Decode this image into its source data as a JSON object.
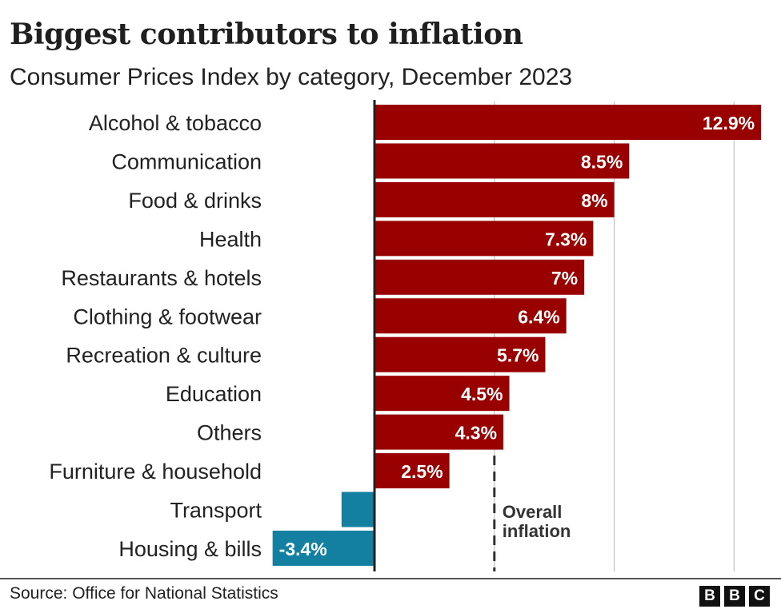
{
  "chart_data": {
    "type": "bar",
    "orientation": "horizontal",
    "title": "Biggest contributors to inflation",
    "subtitle": "Consumer Prices Index by category, December 2023",
    "categories": [
      "Alcohol & tobacco",
      "Communication",
      "Food & drinks",
      "Health",
      "Restaurants & hotels",
      "Clothing & footwear",
      "Recreation & culture",
      "Education",
      "Others",
      "Furniture & household",
      "Transport",
      "Housing & bills"
    ],
    "values": [
      12.9,
      8.5,
      8,
      7.3,
      7,
      6.4,
      5.7,
      4.5,
      4.3,
      2.5,
      -1.1,
      -3.4
    ],
    "data_labels": [
      "12.9%",
      "8.5%",
      "8%",
      "7.3%",
      "7%",
      "6.4%",
      "5.7%",
      "4.5%",
      "4.3%",
      "2.5%",
      "",
      "-3.4%"
    ],
    "xlim": [
      -3.4,
      13.3
    ],
    "grid_values": [
      4,
      8,
      12
    ],
    "reference_line": {
      "value": 4,
      "label_line1": "Overall",
      "label_line2": "inflation"
    },
    "colors": {
      "positive": "#990000",
      "negative": "#1380A1",
      "grid": "#cccccc",
      "axis": "#222222"
    }
  },
  "source": "Source: Office for National Statistics",
  "logo": [
    "B",
    "B",
    "C"
  ]
}
